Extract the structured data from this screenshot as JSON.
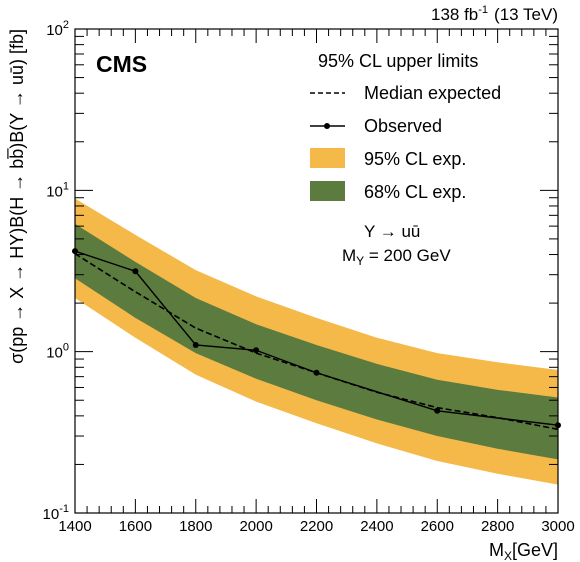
{
  "header": {
    "lumi_value": "138 fb",
    "lumi_exponent": "-1",
    "lumi_energy": "(13 TeV)"
  },
  "labels": {
    "experiment": "CMS",
    "legend_title": "95% CL upper limits",
    "legend_median": "Median expected",
    "legend_observed": "Observed",
    "legend_band95": "95% CL exp.",
    "legend_band68": "68% CL exp.",
    "process_line1": "Y → uū",
    "process_line2": "M",
    "process_line2_sub": "Y",
    "process_line2_rest": " = 200 GeV",
    "ylabel": "σ(pp → X → HY)B(H → bb̅)B(Y → uū) [fb]",
    "xlabel_main": "M",
    "xlabel_sub": "X",
    "xlabel_rest": "[GeV]"
  },
  "colors": {
    "band95": "#f5b94a",
    "band68": "#5c7b3f",
    "median": "#000000",
    "observed": "#000000"
  },
  "chart_data": {
    "type": "line",
    "xlim": [
      1400,
      3000
    ],
    "ylim": [
      0.1,
      100
    ],
    "yscale": "log",
    "x_ticks": [
      1400,
      1600,
      1800,
      2000,
      2200,
      2400,
      2600,
      2800,
      3000
    ],
    "y_ticks": [
      {
        "value": 0.1,
        "base": "10",
        "exp": "-1"
      },
      {
        "value": 1,
        "base": "10",
        "exp": "0"
      },
      {
        "value": 10,
        "base": "10",
        "exp": "1"
      },
      {
        "value": 100,
        "base": "10",
        "exp": "2"
      }
    ],
    "legend_position": "top-right",
    "series": [
      {
        "name": "Observed",
        "x": [
          1400,
          1600,
          1800,
          2000,
          2200,
          2600,
          3000
        ],
        "y": [
          4.2,
          3.15,
          1.1,
          1.02,
          0.74,
          0.43,
          0.35
        ]
      },
      {
        "name": "Median expected",
        "x": [
          1400,
          1600,
          1800,
          2000,
          2200,
          2400,
          2600,
          2800,
          3000
        ],
        "y": [
          4.05,
          2.35,
          1.4,
          0.98,
          0.74,
          0.56,
          0.45,
          0.39,
          0.33
        ]
      }
    ],
    "bands": [
      {
        "name": "95% CL exp.",
        "x": [
          1400,
          1600,
          1800,
          2000,
          2200,
          2400,
          2600,
          2800,
          3000
        ],
        "low": [
          2.15,
          1.22,
          0.72,
          0.49,
          0.36,
          0.27,
          0.21,
          0.175,
          0.15
        ],
        "high": [
          8.9,
          5.3,
          3.2,
          2.2,
          1.62,
          1.22,
          0.98,
          0.86,
          0.77
        ]
      },
      {
        "name": "68% CL exp.",
        "x": [
          1400,
          1600,
          1800,
          2000,
          2200,
          2400,
          2600,
          2800,
          3000
        ],
        "low": [
          2.85,
          1.62,
          0.98,
          0.68,
          0.5,
          0.38,
          0.3,
          0.25,
          0.215
        ],
        "high": [
          6.2,
          3.6,
          2.15,
          1.48,
          1.1,
          0.84,
          0.67,
          0.58,
          0.52
        ]
      }
    ]
  }
}
